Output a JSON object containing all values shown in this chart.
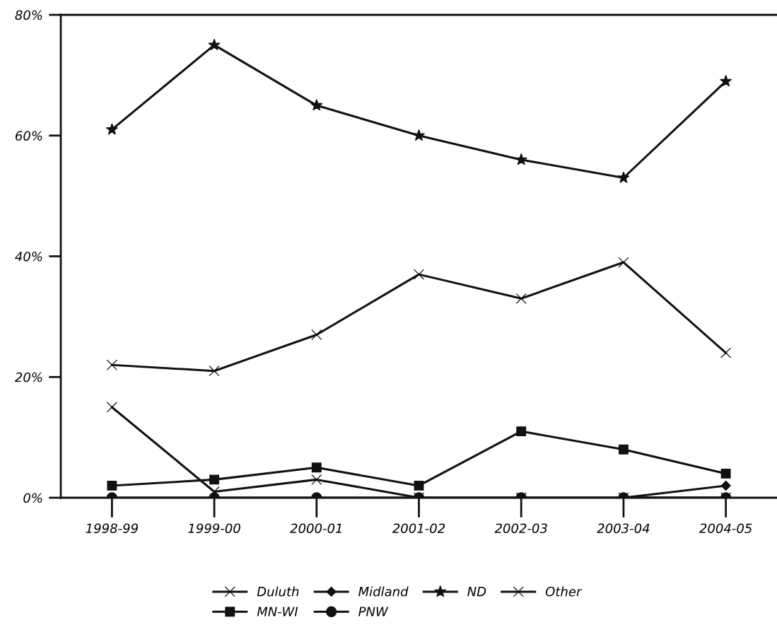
{
  "chart_data": {
    "type": "line",
    "categories": [
      "1998-99",
      "1999-00",
      "2000-01",
      "2001-02",
      "2002-03",
      "2003-04",
      "2004-05"
    ],
    "series": [
      {
        "name": "Duluth",
        "color": "#111111",
        "marker": "cross",
        "values": [
          15,
          1,
          3,
          0,
          0,
          0,
          0
        ]
      },
      {
        "name": "Midland",
        "color": "#111111",
        "marker": "diamond",
        "values": [
          null,
          null,
          null,
          null,
          null,
          0,
          2
        ]
      },
      {
        "name": "ND",
        "color": "#111111",
        "marker": "star",
        "values": [
          61,
          75,
          65,
          60,
          56,
          53,
          69
        ]
      },
      {
        "name": "Other",
        "color": "#111111",
        "marker": "cross",
        "values": [
          22,
          21,
          27,
          37,
          33,
          39,
          24
        ]
      },
      {
        "name": "MN-WI",
        "color": "#111111",
        "marker": "square",
        "values": [
          2,
          3,
          5,
          2,
          11,
          8,
          4
        ]
      },
      {
        "name": "PNW",
        "color": "#111111",
        "marker": "circle",
        "values": [
          0,
          0,
          0,
          0,
          0,
          0,
          0
        ]
      }
    ],
    "ylim": [
      0,
      80
    ],
    "yticks": [
      {
        "value": 0,
        "label": "0%"
      },
      {
        "value": 20,
        "label": "20%"
      },
      {
        "value": 40,
        "label": "40%"
      },
      {
        "value": 60,
        "label": "60%"
      },
      {
        "value": 80,
        "label": "80%"
      }
    ],
    "line_style": "solid",
    "grid": false,
    "legend": "bottom"
  }
}
